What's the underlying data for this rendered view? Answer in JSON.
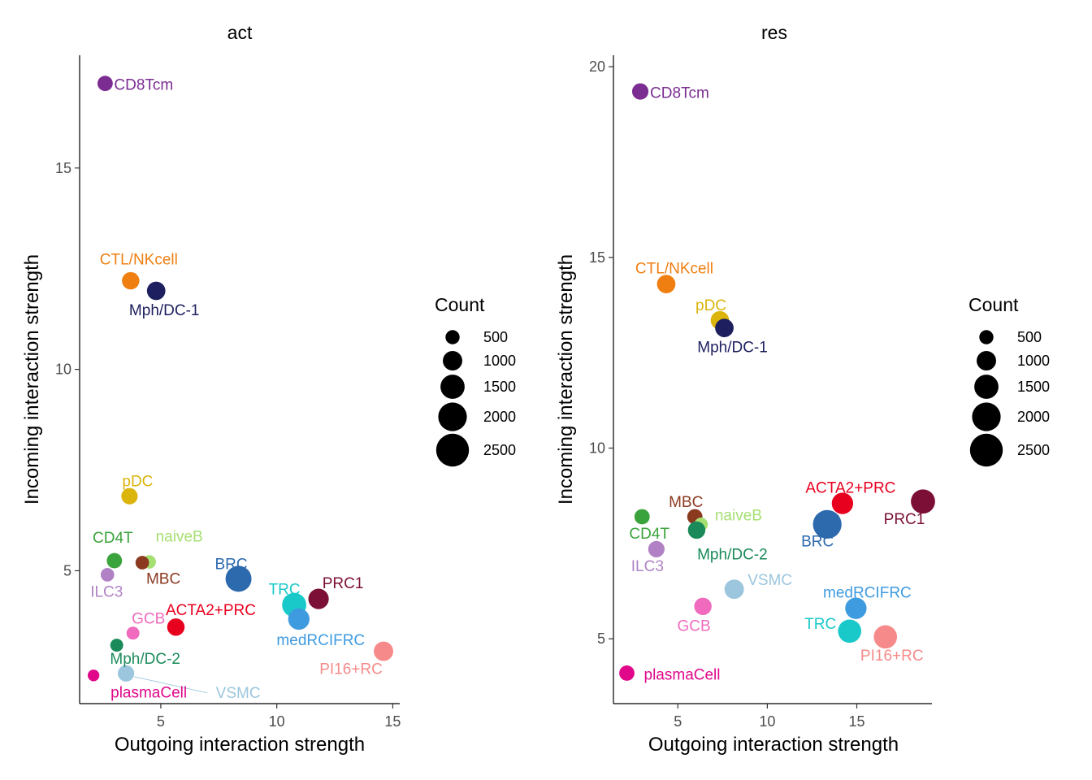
{
  "chart_data": [
    {
      "type": "scatter",
      "title": "act",
      "xlabel": "Outgoing interaction strength",
      "ylabel": "Incoming interaction strength",
      "xlim": [
        1.5,
        15.3
      ],
      "ylim": [
        1.7,
        17.8
      ],
      "xticks": [
        5,
        10,
        15
      ],
      "yticks": [
        5,
        10,
        15
      ],
      "size_legend_title": "Count",
      "size_legend": [
        500,
        1000,
        1500,
        2000,
        2500
      ],
      "points": [
        {
          "label": "CD8Tcm",
          "x": 2.6,
          "y": 17.1,
          "count": 600,
          "color": "#7b2d92"
        },
        {
          "label": "CTL/NKcell",
          "x": 3.7,
          "y": 12.2,
          "count": 800,
          "color": "#ef7f11"
        },
        {
          "label": "Mph/DC-1",
          "x": 4.8,
          "y": 11.95,
          "count": 900,
          "color": "#1d1f5e"
        },
        {
          "label": "pDC",
          "x": 3.65,
          "y": 6.85,
          "count": 700,
          "color": "#dbb40c"
        },
        {
          "label": "CD4T",
          "x": 3.0,
          "y": 5.25,
          "count": 600,
          "color": "#3ba33b"
        },
        {
          "label": "naiveB",
          "x": 4.5,
          "y": 5.22,
          "count": 450,
          "color": "#a6e073"
        },
        {
          "label": "MBC",
          "x": 4.2,
          "y": 5.2,
          "count": 450,
          "color": "#8b3a20"
        },
        {
          "label": "ILC3",
          "x": 2.7,
          "y": 4.9,
          "count": 450,
          "color": "#b082c5"
        },
        {
          "label": "BRC",
          "x": 8.35,
          "y": 4.8,
          "count": 1700,
          "color": "#2c69ad"
        },
        {
          "label": "PRC1",
          "x": 11.8,
          "y": 4.3,
          "count": 1100,
          "color": "#7b0f36"
        },
        {
          "label": "TRC",
          "x": 10.75,
          "y": 4.15,
          "count": 1500,
          "color": "#19c9c9"
        },
        {
          "label": "medRCIFRC",
          "x": 10.95,
          "y": 3.8,
          "count": 1200,
          "color": "#3f9be0"
        },
        {
          "label": "GCB",
          "x": 3.8,
          "y": 3.45,
          "count": 400,
          "color": "#f06bbd"
        },
        {
          "label": "ACTA2+PRC",
          "x": 5.65,
          "y": 3.6,
          "count": 800,
          "color": "#e8001f"
        },
        {
          "label": "Mph/DC-2",
          "x": 3.1,
          "y": 3.15,
          "count": 400,
          "color": "#1a8a5a"
        },
        {
          "label": "PI16+RC",
          "x": 14.6,
          "y": 3.0,
          "count": 1000,
          "color": "#f68a8a"
        },
        {
          "label": "VSMC",
          "x": 3.5,
          "y": 2.45,
          "count": 700,
          "color": "#9cc6de"
        },
        {
          "label": "plasmaCell",
          "x": 2.1,
          "y": 2.4,
          "count": 300,
          "color": "#e0078a"
        }
      ]
    },
    {
      "type": "scatter",
      "title": "res",
      "xlabel": "Outgoing interaction strength",
      "ylabel": "Incoming interaction strength",
      "xlim": [
        1.4,
        19.2
      ],
      "ylim": [
        3.3,
        20.3
      ],
      "xticks": [
        5,
        10,
        15
      ],
      "yticks": [
        5,
        10,
        15,
        20
      ],
      "size_legend_title": "Count",
      "size_legend": [
        500,
        1000,
        1500,
        2000,
        2500
      ],
      "points": [
        {
          "label": "CD8Tcm",
          "x": 2.9,
          "y": 19.35,
          "count": 700,
          "color": "#7b2d92"
        },
        {
          "label": "CTL/NKcell",
          "x": 4.35,
          "y": 14.3,
          "count": 900,
          "color": "#ef7f11"
        },
        {
          "label": "pDC",
          "x": 7.35,
          "y": 13.35,
          "count": 900,
          "color": "#dbb40c"
        },
        {
          "label": "Mph/DC-1",
          "x": 7.6,
          "y": 13.15,
          "count": 900,
          "color": "#1d1f5e"
        },
        {
          "label": "PRC1",
          "x": 18.7,
          "y": 8.6,
          "count": 1500,
          "color": "#7b0f36"
        },
        {
          "label": "ACTA2+PRC",
          "x": 14.2,
          "y": 8.55,
          "count": 1200,
          "color": "#e8001f"
        },
        {
          "label": "MBC",
          "x": 5.95,
          "y": 8.2,
          "count": 600,
          "color": "#8b3a20"
        },
        {
          "label": "CD4T",
          "x": 3.0,
          "y": 8.2,
          "count": 600,
          "color": "#3ba33b"
        },
        {
          "label": "BRC",
          "x": 13.35,
          "y": 8.0,
          "count": 2000,
          "color": "#2c69ad"
        },
        {
          "label": "naiveB",
          "x": 6.3,
          "y": 8.0,
          "count": 450,
          "color": "#a6e073"
        },
        {
          "label": "Mph/DC-2",
          "x": 6.05,
          "y": 7.85,
          "count": 800,
          "color": "#1a8a5a"
        },
        {
          "label": "ILC3",
          "x": 3.8,
          "y": 7.35,
          "count": 700,
          "color": "#b082c5"
        },
        {
          "label": "VSMC",
          "x": 8.15,
          "y": 6.3,
          "count": 1000,
          "color": "#9cc6de"
        },
        {
          "label": "GCB",
          "x": 6.4,
          "y": 5.85,
          "count": 800,
          "color": "#f06bbd"
        },
        {
          "label": "medRCIFRC",
          "x": 14.95,
          "y": 5.8,
          "count": 1200,
          "color": "#3f9be0"
        },
        {
          "label": "TRC",
          "x": 14.6,
          "y": 5.2,
          "count": 1400,
          "color": "#19c9c9"
        },
        {
          "label": "PI16+RC",
          "x": 16.6,
          "y": 5.05,
          "count": 1400,
          "color": "#f68a8a"
        },
        {
          "label": "plasmaCell",
          "x": 2.15,
          "y": 4.1,
          "count": 600,
          "color": "#e0078a"
        }
      ]
    }
  ]
}
